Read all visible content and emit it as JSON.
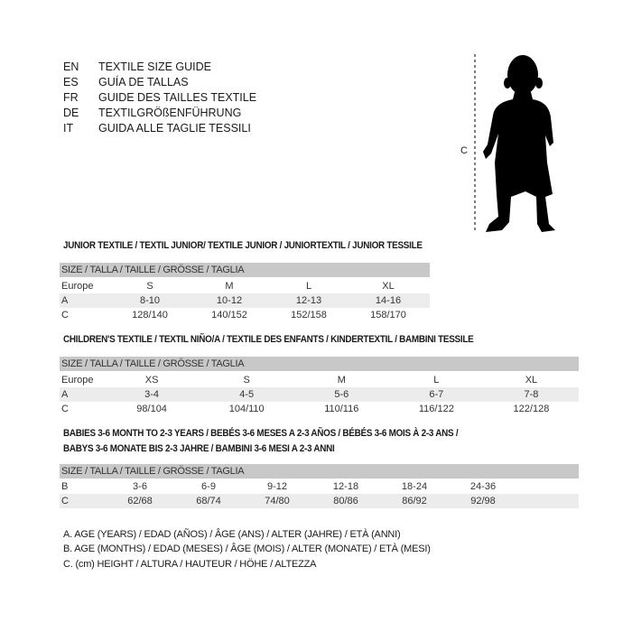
{
  "languages": [
    {
      "code": "EN",
      "text": "TEXTILE SIZE GUIDE"
    },
    {
      "code": "ES",
      "text": "GUÍA DE TALLAS"
    },
    {
      "code": "FR",
      "text": "GUIDE DES TAILLES TEXTILE"
    },
    {
      "code": "DE",
      "text": "TEXTILGRÖßENFÜHRUNG"
    },
    {
      "code": "IT",
      "text": "GUIDA ALLE TAGLIE TESSILI"
    }
  ],
  "figure": {
    "measure_label": "C",
    "icon": "child-silhouette"
  },
  "junior": {
    "title": "JUNIOR TEXTILE / TEXTIL JUNIOR/ TEXTILE JUNIOR / JUNIORTEXTIL / JUNIOR TESSILE",
    "header": "SIZE / TALLA / TAILLE / GRÖSSE / TAGLIA",
    "rows": [
      {
        "label": "Europe",
        "values": [
          "S",
          "M",
          "L",
          "XL"
        ]
      },
      {
        "label": "A",
        "values": [
          "8-10",
          "10-12",
          "12-13",
          "14-16"
        ]
      },
      {
        "label": "C",
        "values": [
          "128/140",
          "140/152",
          "152/158",
          "158/170"
        ]
      }
    ]
  },
  "children": {
    "title": "CHILDREN'S TEXTILE / TEXTIL NIÑO/A / TEXTILE DES ENFANTS / KINDERTEXTIL / BAMBINI TESSILE",
    "header": "SIZE / TALLA / TAILLE / GRÖSSE / TAGLIA",
    "rows": [
      {
        "label": "Europe",
        "values": [
          "XS",
          "S",
          "M",
          "L",
          "XL"
        ]
      },
      {
        "label": "A",
        "values": [
          "3-4",
          "4-5",
          "5-6",
          "6-7",
          "7-8"
        ]
      },
      {
        "label": "C",
        "values": [
          "98/104",
          "104/110",
          "110/116",
          "116/122",
          "122/128"
        ]
      }
    ]
  },
  "babies": {
    "title_line1": "BABIES 3-6 MONTH TO 2-3 YEARS / BEBÉS 3-6 MESES A 2-3 AÑOS / BÉBÉS 3-6 MOIS À 2-3 ANS /",
    "title_line2": "BABYS 3-6 MONATE BIS 2-3 JAHRE / BAMBINI 3-6 MESI A 2-3 ANNI",
    "header": "SIZE / TALLA / TAILLE / GRÖSSE / TAGLIA",
    "rows": [
      {
        "label": "B",
        "values": [
          "3-6",
          "6-9",
          "9-12",
          "12-18",
          "18-24",
          "24-36"
        ]
      },
      {
        "label": "C",
        "values": [
          "62/68",
          "68/74",
          "74/80",
          "80/86",
          "86/92",
          "92/98"
        ]
      }
    ]
  },
  "legend": [
    "A. AGE (YEARS) / EDAD (AÑOS) / ÂGE (ANS) / ALTER (JAHRE) / ETÀ (ANNI)",
    "B. AGE (MONTHS) / EDAD (MESES) / ÂGE (MOIS) / ALTER (MONATE) / ETÀ (MESI)",
    "C. (cm) HEIGHT / ALTURA / HAUTEUR / HÖHE / ALTEZZA"
  ],
  "colors": {
    "header_bg": "#c8c8c8",
    "row_shade": "#ececec"
  }
}
